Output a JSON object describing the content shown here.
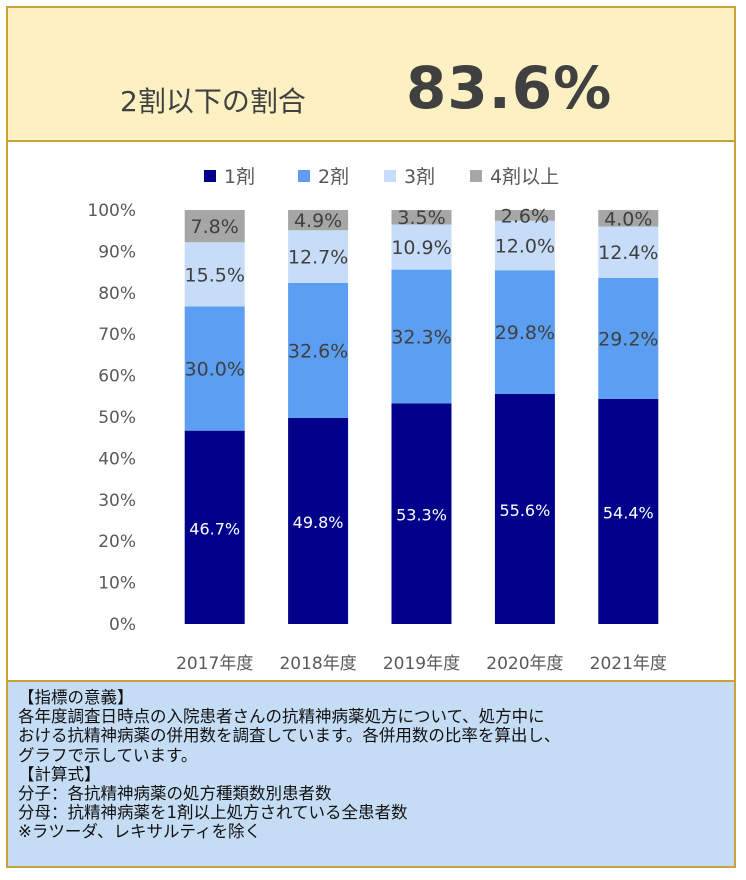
{
  "header": {
    "label": "2割以下の割合",
    "value": "83.6%"
  },
  "chart_data": {
    "type": "bar",
    "stacked": true,
    "percent": true,
    "categories": [
      "2017年度",
      "2018年度",
      "2019年度",
      "2020年度",
      "2021年度"
    ],
    "series": [
      {
        "name": "1剤",
        "color": "#00008b",
        "label_color": "#ffffff",
        "values": [
          46.7,
          49.8,
          53.3,
          55.6,
          54.4
        ],
        "labels": [
          "46.7%",
          "49.8%",
          "53.3%",
          "55.6%",
          "54.4%"
        ]
      },
      {
        "name": "2剤",
        "color": "#5b9ef2",
        "label_color": "#404040",
        "values": [
          30.0,
          32.6,
          32.3,
          29.8,
          29.2
        ],
        "labels": [
          "30.0%",
          "32.6%",
          "32.3%",
          "29.8%",
          "29.2%"
        ]
      },
      {
        "name": "3剤",
        "color": "#c6dcf8",
        "label_color": "#404040",
        "values": [
          15.5,
          12.7,
          10.9,
          12.0,
          12.4
        ],
        "labels": [
          "15.5%",
          "12.7%",
          "10.9%",
          "12.0%",
          "12.4%"
        ]
      },
      {
        "name": "4剤以上",
        "color": "#a6a6a6",
        "label_color": "#404040",
        "values": [
          7.8,
          4.9,
          3.5,
          2.6,
          4.0
        ],
        "labels": [
          "7.8%",
          "4.9%",
          "3.5%",
          "2.6%",
          "4.0%"
        ]
      }
    ],
    "yticks": [
      "0%",
      "10%",
      "20%",
      "30%",
      "40%",
      "50%",
      "60%",
      "70%",
      "80%",
      "90%",
      "100%"
    ],
    "ylim": [
      0,
      100
    ],
    "legend": "top",
    "grid": false
  },
  "notes": {
    "lines": [
      "【指標の意義】",
      "各年度調査日時点の入院患者さんの抗精神病薬処方について、処方中に",
      "おける抗精神病薬の併用数を調査しています。各併用数の比率を算出し、",
      "グラフで示しています。",
      "【計算式】",
      "分子：各抗精神病薬の処方種類数別患者数",
      "分母：抗精神病薬を1剤以上処方されている全患者数",
      "※ラツーダ、レキサルティを除く"
    ]
  }
}
